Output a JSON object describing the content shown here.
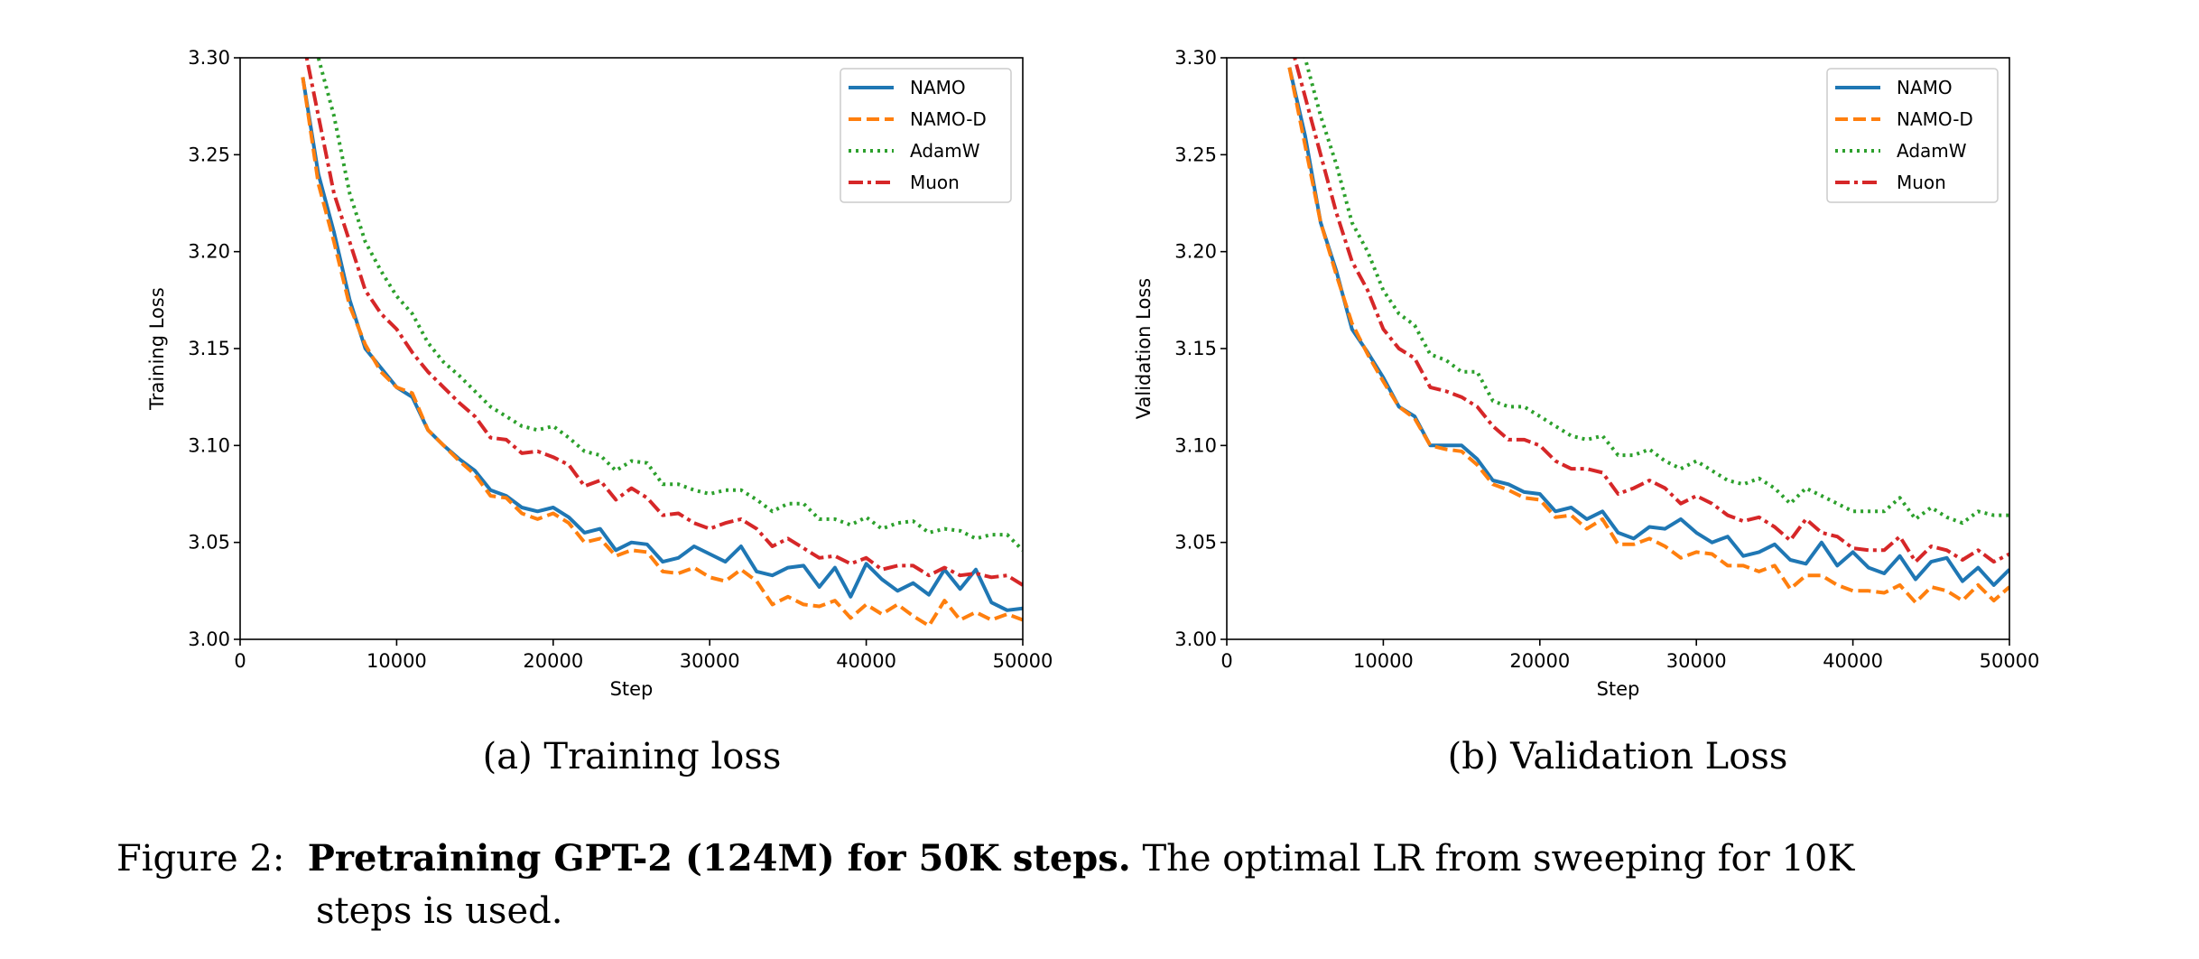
{
  "chart_data": [
    {
      "type": "line",
      "ylabel": "Training Loss",
      "xlabel": "Step",
      "caption": "(a) Training loss",
      "xlim": [
        0,
        50000
      ],
      "ylim": [
        3.0,
        3.3
      ],
      "xticks": [
        "0",
        "10000",
        "20000",
        "30000",
        "40000",
        "50000"
      ],
      "yticks": [
        "3.00",
        "3.05",
        "3.10",
        "3.15",
        "3.20",
        "3.25",
        "3.30"
      ],
      "legend_position": "top-right",
      "x": [
        4000,
        5000,
        6000,
        7000,
        8000,
        9000,
        10000,
        11000,
        12000,
        13000,
        14000,
        15000,
        16000,
        17000,
        18000,
        19000,
        20000,
        21000,
        22000,
        23000,
        24000,
        25000,
        26000,
        27000,
        28000,
        29000,
        30000,
        31000,
        32000,
        33000,
        34000,
        35000,
        36000,
        37000,
        38000,
        39000,
        40000,
        41000,
        42000,
        43000,
        44000,
        45000,
        46000,
        47000,
        48000,
        49000,
        50000
      ],
      "series": [
        {
          "name": "NAMO",
          "color": "#1f77b4",
          "style": "solid",
          "values": [
            3.29,
            3.24,
            3.21,
            3.175,
            3.15,
            3.14,
            3.13,
            3.125,
            3.108,
            3.1,
            3.093,
            3.087,
            3.077,
            3.074,
            3.068,
            3.066,
            3.068,
            3.063,
            3.055,
            3.057,
            3.046,
            3.05,
            3.049,
            3.04,
            3.042,
            3.048,
            3.044,
            3.04,
            3.048,
            3.035,
            3.033,
            3.037,
            3.038,
            3.027,
            3.037,
            3.022,
            3.039,
            3.031,
            3.025,
            3.029,
            3.023,
            3.036,
            3.026,
            3.036,
            3.019,
            3.015,
            3.016
          ]
        },
        {
          "name": "NAMO-D",
          "color": "#ff7f0e",
          "style": "dashed",
          "values": [
            3.29,
            3.235,
            3.205,
            3.172,
            3.152,
            3.138,
            3.13,
            3.127,
            3.108,
            3.1,
            3.092,
            3.085,
            3.074,
            3.073,
            3.065,
            3.062,
            3.065,
            3.06,
            3.05,
            3.052,
            3.043,
            3.046,
            3.045,
            3.035,
            3.034,
            3.037,
            3.032,
            3.03,
            3.036,
            3.03,
            3.018,
            3.022,
            3.018,
            3.017,
            3.02,
            3.011,
            3.018,
            3.013,
            3.018,
            3.012,
            3.007,
            3.02,
            3.01,
            3.014,
            3.01,
            3.013,
            3.01
          ]
        },
        {
          "name": "AdamW",
          "color": "#2ca02c",
          "style": "dotted",
          "values": [
            3.34,
            3.3,
            3.27,
            3.23,
            3.205,
            3.19,
            3.177,
            3.168,
            3.153,
            3.143,
            3.136,
            3.128,
            3.12,
            3.115,
            3.11,
            3.108,
            3.11,
            3.104,
            3.097,
            3.095,
            3.087,
            3.092,
            3.091,
            3.08,
            3.08,
            3.077,
            3.075,
            3.077,
            3.077,
            3.072,
            3.066,
            3.07,
            3.07,
            3.062,
            3.062,
            3.059,
            3.063,
            3.057,
            3.06,
            3.061,
            3.055,
            3.057,
            3.056,
            3.052,
            3.054,
            3.054,
            3.046
          ]
        },
        {
          "name": "Muon",
          "color": "#d62728",
          "style": "dashdot",
          "values": [
            3.31,
            3.27,
            3.23,
            3.205,
            3.18,
            3.168,
            3.16,
            3.148,
            3.138,
            3.13,
            3.122,
            3.115,
            3.104,
            3.103,
            3.096,
            3.097,
            3.094,
            3.09,
            3.079,
            3.082,
            3.072,
            3.078,
            3.073,
            3.064,
            3.065,
            3.06,
            3.057,
            3.06,
            3.062,
            3.057,
            3.048,
            3.052,
            3.047,
            3.042,
            3.043,
            3.039,
            3.042,
            3.036,
            3.038,
            3.038,
            3.033,
            3.037,
            3.033,
            3.034,
            3.032,
            3.033,
            3.028
          ]
        }
      ]
    },
    {
      "type": "line",
      "ylabel": "Validation Loss",
      "xlabel": "Step",
      "caption": "(b) Validation Loss",
      "xlim": [
        0,
        50000
      ],
      "ylim": [
        3.0,
        3.3
      ],
      "xticks": [
        "0",
        "10000",
        "20000",
        "30000",
        "40000",
        "50000"
      ],
      "yticks": [
        "3.00",
        "3.05",
        "3.10",
        "3.15",
        "3.20",
        "3.25",
        "3.30"
      ],
      "legend_position": "top-right",
      "x": [
        4000,
        5000,
        6000,
        7000,
        8000,
        9000,
        10000,
        11000,
        12000,
        13000,
        14000,
        15000,
        16000,
        17000,
        18000,
        19000,
        20000,
        21000,
        22000,
        23000,
        24000,
        25000,
        26000,
        27000,
        28000,
        29000,
        30000,
        31000,
        32000,
        33000,
        34000,
        35000,
        36000,
        37000,
        38000,
        39000,
        40000,
        41000,
        42000,
        43000,
        44000,
        45000,
        46000,
        47000,
        48000,
        49000,
        50000
      ],
      "series": [
        {
          "name": "NAMO",
          "color": "#1f77b4",
          "style": "solid",
          "values": [
            3.295,
            3.26,
            3.215,
            3.19,
            3.16,
            3.148,
            3.135,
            3.12,
            3.115,
            3.1,
            3.1,
            3.1,
            3.093,
            3.082,
            3.08,
            3.076,
            3.075,
            3.066,
            3.068,
            3.062,
            3.066,
            3.055,
            3.052,
            3.058,
            3.057,
            3.062,
            3.055,
            3.05,
            3.053,
            3.043,
            3.045,
            3.049,
            3.041,
            3.039,
            3.05,
            3.038,
            3.045,
            3.037,
            3.034,
            3.043,
            3.031,
            3.04,
            3.042,
            3.03,
            3.037,
            3.028,
            3.036
          ]
        },
        {
          "name": "NAMO-D",
          "color": "#ff7f0e",
          "style": "dashed",
          "values": [
            3.295,
            3.255,
            3.215,
            3.188,
            3.163,
            3.147,
            3.133,
            3.12,
            3.114,
            3.1,
            3.098,
            3.097,
            3.09,
            3.08,
            3.077,
            3.073,
            3.072,
            3.063,
            3.064,
            3.057,
            3.062,
            3.049,
            3.049,
            3.052,
            3.048,
            3.042,
            3.045,
            3.044,
            3.038,
            3.038,
            3.035,
            3.038,
            3.026,
            3.033,
            3.033,
            3.028,
            3.025,
            3.025,
            3.024,
            3.028,
            3.019,
            3.027,
            3.025,
            3.02,
            3.028,
            3.02,
            3.027
          ]
        },
        {
          "name": "AdamW",
          "color": "#2ca02c",
          "style": "dotted",
          "values": [
            3.33,
            3.3,
            3.27,
            3.245,
            3.215,
            3.2,
            3.18,
            3.168,
            3.162,
            3.147,
            3.144,
            3.138,
            3.138,
            3.123,
            3.12,
            3.12,
            3.115,
            3.11,
            3.105,
            3.103,
            3.105,
            3.095,
            3.095,
            3.098,
            3.092,
            3.088,
            3.092,
            3.087,
            3.082,
            3.08,
            3.083,
            3.078,
            3.07,
            3.078,
            3.074,
            3.07,
            3.066,
            3.066,
            3.066,
            3.073,
            3.062,
            3.068,
            3.063,
            3.06,
            3.066,
            3.064,
            3.064
          ]
        },
        {
          "name": "Muon",
          "color": "#d62728",
          "style": "dashdot",
          "values": [
            3.31,
            3.28,
            3.25,
            3.22,
            3.195,
            3.18,
            3.16,
            3.15,
            3.145,
            3.13,
            3.128,
            3.125,
            3.12,
            3.11,
            3.103,
            3.103,
            3.1,
            3.092,
            3.088,
            3.088,
            3.086,
            3.075,
            3.078,
            3.082,
            3.078,
            3.07,
            3.074,
            3.07,
            3.064,
            3.061,
            3.063,
            3.058,
            3.051,
            3.062,
            3.055,
            3.053,
            3.047,
            3.046,
            3.046,
            3.053,
            3.04,
            3.048,
            3.046,
            3.041,
            3.046,
            3.04,
            3.044
          ]
        }
      ]
    }
  ],
  "figure_caption": {
    "label": "Figure 2:",
    "bold": "Pretraining GPT-2 (124M) for 50K steps.",
    "line1_rest": "The optimal LR from sweeping for 10K",
    "line2": "steps is used."
  }
}
